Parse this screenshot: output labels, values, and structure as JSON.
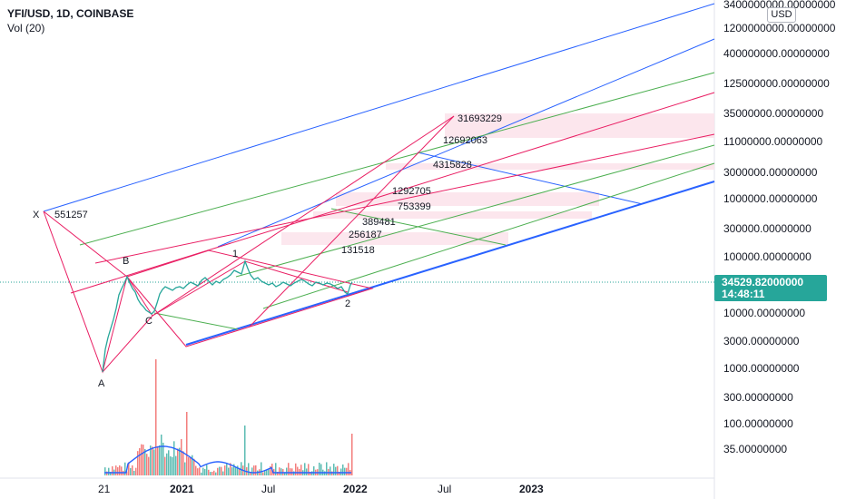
{
  "header": {
    "symbol_line": "YFI/USD, 1D, COINBASE",
    "volume_line": "Vol (20)"
  },
  "currency_button": "USD",
  "last_price": {
    "value": "34529.82000000",
    "countdown": "14:48:11"
  },
  "colors": {
    "harmonic": "#e91e63",
    "fork_blue": "#2962ff",
    "fork_green": "#4caf50",
    "price_green": "#26a69a",
    "zone_fill": "#fce4ec",
    "volume_up": "#26a69a",
    "volume_down": "#ef5350",
    "volume_ma": "#2962ff"
  },
  "chart_data": {
    "type": "line",
    "scale": "log",
    "y_tick_labels": [
      "3400000000.00000000",
      "1200000000.00000000",
      "400000000.00000000",
      "125000000.00000000",
      "35000000.00000000",
      "11000000.00000000",
      "3000000.00000000",
      "1000000.00000000",
      "300000.00000000",
      "100000.00000000",
      "10000.00000000",
      "3000.00000000",
      "1000.00000000",
      "300.00000000",
      "100.00000000",
      "35.00000000"
    ],
    "x_tick_labels": [
      {
        "text": "21",
        "bold": false
      },
      {
        "text": "2021",
        "bold": true
      },
      {
        "text": "Jul",
        "bold": false
      },
      {
        "text": "2022",
        "bold": true
      },
      {
        "text": "Jul",
        "bold": false
      },
      {
        "text": "2023",
        "bold": true
      }
    ],
    "pattern_points": [
      {
        "label": "X",
        "value": "551257"
      },
      {
        "label": "A",
        "value": ""
      },
      {
        "label": "B",
        "value": ""
      },
      {
        "label": "C",
        "value": ""
      },
      {
        "label": "1",
        "value": ""
      },
      {
        "label": "2",
        "value": ""
      }
    ],
    "target_levels": [
      "31693229",
      "12692063",
      "4315828",
      "1292705",
      "753399",
      "389481",
      "256187",
      "131518"
    ],
    "last_price": 34529.82
  }
}
